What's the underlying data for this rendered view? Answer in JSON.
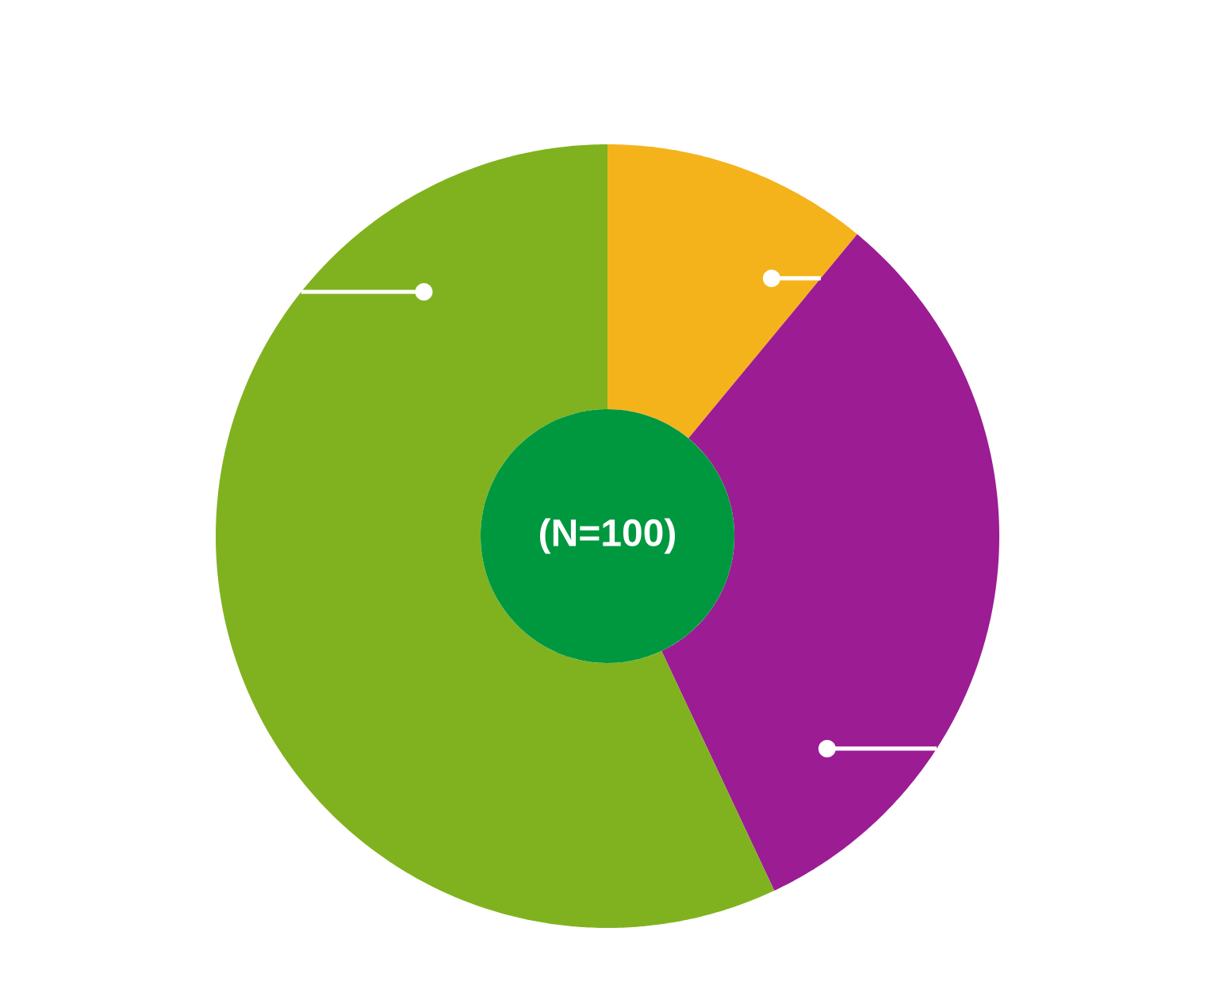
{
  "chart_data": {
    "type": "donut",
    "categories": [
      null,
      null,
      null
    ],
    "values": [
      11,
      32,
      57
    ],
    "colors": [
      "#f5b31b",
      "#9c1c93",
      "#80b21f"
    ],
    "annotations": [
      "(N=100)"
    ]
  }
}
